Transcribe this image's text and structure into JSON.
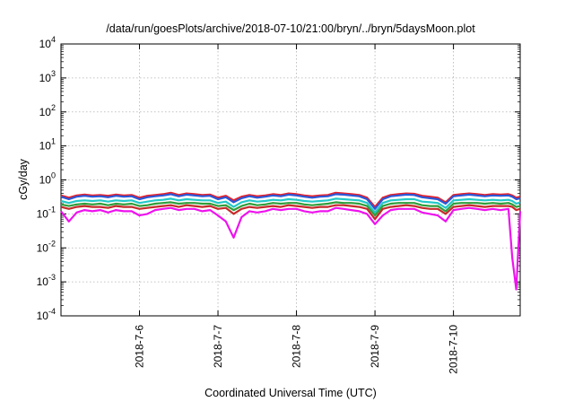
{
  "chart_data": {
    "type": "line",
    "title": "/data/run/goesPlots/archive/2018-07-10/21:00/bryn/../bryn/5daysMoon.plot",
    "xlabel": "Coordinated Universal Time (UTC)",
    "ylabel": "cGy/day",
    "yscale": "log",
    "ylim": [
      0.0001,
      10000
    ],
    "xlim": [
      0,
      5.85
    ],
    "grid": true,
    "legend": "none",
    "x_ticks": [
      {
        "label": "2018-7-6",
        "x": 1.0
      },
      {
        "label": "2018-7-7",
        "x": 2.0
      },
      {
        "label": "2018-7-8",
        "x": 3.0
      },
      {
        "label": "2018-7-9",
        "x": 4.0
      },
      {
        "label": "2018-7-10",
        "x": 5.0
      }
    ],
    "y_ticks": [
      {
        "mantissa": "10",
        "exp": "-4",
        "value": 0.0001
      },
      {
        "mantissa": "10",
        "exp": "-3",
        "value": 0.001
      },
      {
        "mantissa": "10",
        "exp": "-2",
        "value": 0.01
      },
      {
        "mantissa": "10",
        "exp": "-1",
        "value": 0.1
      },
      {
        "mantissa": "10",
        "exp": "0",
        "value": 1
      },
      {
        "mantissa": "10",
        "exp": "1",
        "value": 10
      },
      {
        "mantissa": "10",
        "exp": "2",
        "value": 100
      },
      {
        "mantissa": "10",
        "exp": "3",
        "value": 1000
      },
      {
        "mantissa": "10",
        "exp": "4",
        "value": 10000
      }
    ],
    "x": [
      0.0,
      0.1,
      0.2,
      0.3,
      0.4,
      0.5,
      0.6,
      0.7,
      0.8,
      0.9,
      1.0,
      1.1,
      1.2,
      1.3,
      1.4,
      1.5,
      1.6,
      1.7,
      1.8,
      1.9,
      2.0,
      2.1,
      2.2,
      2.3,
      2.4,
      2.5,
      2.6,
      2.7,
      2.8,
      2.9,
      3.0,
      3.1,
      3.2,
      3.3,
      3.4,
      3.5,
      3.6,
      3.7,
      3.8,
      3.9,
      4.0,
      4.1,
      4.2,
      4.3,
      4.4,
      4.5,
      4.6,
      4.7,
      4.8,
      4.9,
      5.0,
      5.1,
      5.2,
      5.3,
      5.4,
      5.5,
      5.6,
      5.7,
      5.75,
      5.8,
      5.85
    ],
    "series": [
      {
        "color": "#e8202a",
        "values": [
          0.35,
          0.3,
          0.35,
          0.37,
          0.35,
          0.36,
          0.34,
          0.37,
          0.35,
          0.36,
          0.3,
          0.34,
          0.36,
          0.38,
          0.42,
          0.36,
          0.4,
          0.38,
          0.36,
          0.37,
          0.3,
          0.34,
          0.25,
          0.32,
          0.36,
          0.33,
          0.35,
          0.38,
          0.36,
          0.4,
          0.38,
          0.35,
          0.33,
          0.35,
          0.36,
          0.42,
          0.4,
          0.38,
          0.36,
          0.3,
          0.16,
          0.3,
          0.36,
          0.38,
          0.4,
          0.39,
          0.34,
          0.32,
          0.3,
          0.22,
          0.36,
          0.38,
          0.4,
          0.38,
          0.36,
          0.38,
          0.37,
          0.38,
          0.35,
          0.3,
          0.32
        ]
      },
      {
        "color": "#2a58d8",
        "values": [
          0.32,
          0.27,
          0.32,
          0.34,
          0.32,
          0.33,
          0.31,
          0.34,
          0.32,
          0.33,
          0.27,
          0.31,
          0.33,
          0.35,
          0.38,
          0.33,
          0.37,
          0.35,
          0.33,
          0.34,
          0.27,
          0.31,
          0.22,
          0.29,
          0.33,
          0.3,
          0.32,
          0.35,
          0.33,
          0.37,
          0.35,
          0.32,
          0.3,
          0.32,
          0.33,
          0.38,
          0.37,
          0.35,
          0.33,
          0.27,
          0.14,
          0.27,
          0.33,
          0.35,
          0.37,
          0.36,
          0.31,
          0.29,
          0.27,
          0.2,
          0.33,
          0.35,
          0.37,
          0.35,
          0.33,
          0.35,
          0.34,
          0.35,
          0.32,
          0.27,
          0.29
        ]
      },
      {
        "color": "#22c8c8",
        "values": [
          0.24,
          0.21,
          0.24,
          0.25,
          0.24,
          0.25,
          0.23,
          0.25,
          0.24,
          0.25,
          0.21,
          0.23,
          0.25,
          0.26,
          0.28,
          0.25,
          0.27,
          0.26,
          0.25,
          0.25,
          0.21,
          0.23,
          0.16,
          0.22,
          0.25,
          0.23,
          0.24,
          0.26,
          0.25,
          0.27,
          0.26,
          0.24,
          0.23,
          0.24,
          0.25,
          0.28,
          0.27,
          0.26,
          0.25,
          0.21,
          0.11,
          0.21,
          0.25,
          0.26,
          0.27,
          0.27,
          0.23,
          0.22,
          0.21,
          0.15,
          0.25,
          0.26,
          0.27,
          0.26,
          0.25,
          0.26,
          0.25,
          0.26,
          0.24,
          0.2,
          0.22
        ]
      },
      {
        "color": "#2e9e3a",
        "values": [
          0.19,
          0.17,
          0.19,
          0.2,
          0.19,
          0.2,
          0.18,
          0.2,
          0.19,
          0.2,
          0.17,
          0.18,
          0.2,
          0.21,
          0.22,
          0.2,
          0.21,
          0.21,
          0.2,
          0.2,
          0.17,
          0.18,
          0.13,
          0.17,
          0.2,
          0.18,
          0.19,
          0.21,
          0.2,
          0.21,
          0.21,
          0.19,
          0.18,
          0.19,
          0.2,
          0.22,
          0.21,
          0.21,
          0.2,
          0.17,
          0.09,
          0.17,
          0.2,
          0.21,
          0.21,
          0.21,
          0.18,
          0.17,
          0.17,
          0.12,
          0.2,
          0.21,
          0.21,
          0.21,
          0.2,
          0.21,
          0.2,
          0.21,
          0.19,
          0.16,
          0.17
        ]
      },
      {
        "color": "#c62a2a",
        "values": [
          0.16,
          0.14,
          0.16,
          0.17,
          0.16,
          0.16,
          0.15,
          0.17,
          0.16,
          0.16,
          0.14,
          0.15,
          0.16,
          0.17,
          0.18,
          0.16,
          0.18,
          0.17,
          0.16,
          0.17,
          0.14,
          0.15,
          0.1,
          0.14,
          0.16,
          0.15,
          0.16,
          0.17,
          0.16,
          0.18,
          0.17,
          0.16,
          0.15,
          0.16,
          0.16,
          0.18,
          0.18,
          0.17,
          0.16,
          0.14,
          0.07,
          0.14,
          0.16,
          0.17,
          0.18,
          0.17,
          0.15,
          0.14,
          0.14,
          0.1,
          0.16,
          0.17,
          0.18,
          0.17,
          0.16,
          0.17,
          0.17,
          0.17,
          0.16,
          0.13,
          0.14
        ]
      },
      {
        "color": "#ee12ee",
        "values": [
          0.12,
          0.06,
          0.11,
          0.13,
          0.12,
          0.13,
          0.11,
          0.13,
          0.12,
          0.12,
          0.09,
          0.1,
          0.13,
          0.14,
          0.15,
          0.13,
          0.14,
          0.14,
          0.12,
          0.13,
          0.09,
          0.06,
          0.02,
          0.08,
          0.12,
          0.11,
          0.12,
          0.14,
          0.13,
          0.14,
          0.14,
          0.12,
          0.11,
          0.12,
          0.12,
          0.15,
          0.14,
          0.13,
          0.12,
          0.1,
          0.05,
          0.09,
          0.13,
          0.14,
          0.14,
          0.14,
          0.11,
          0.1,
          0.09,
          0.06,
          0.13,
          0.14,
          0.15,
          0.14,
          0.13,
          0.14,
          0.13,
          0.14,
          0.005,
          0.0006,
          0.12
        ]
      }
    ]
  }
}
